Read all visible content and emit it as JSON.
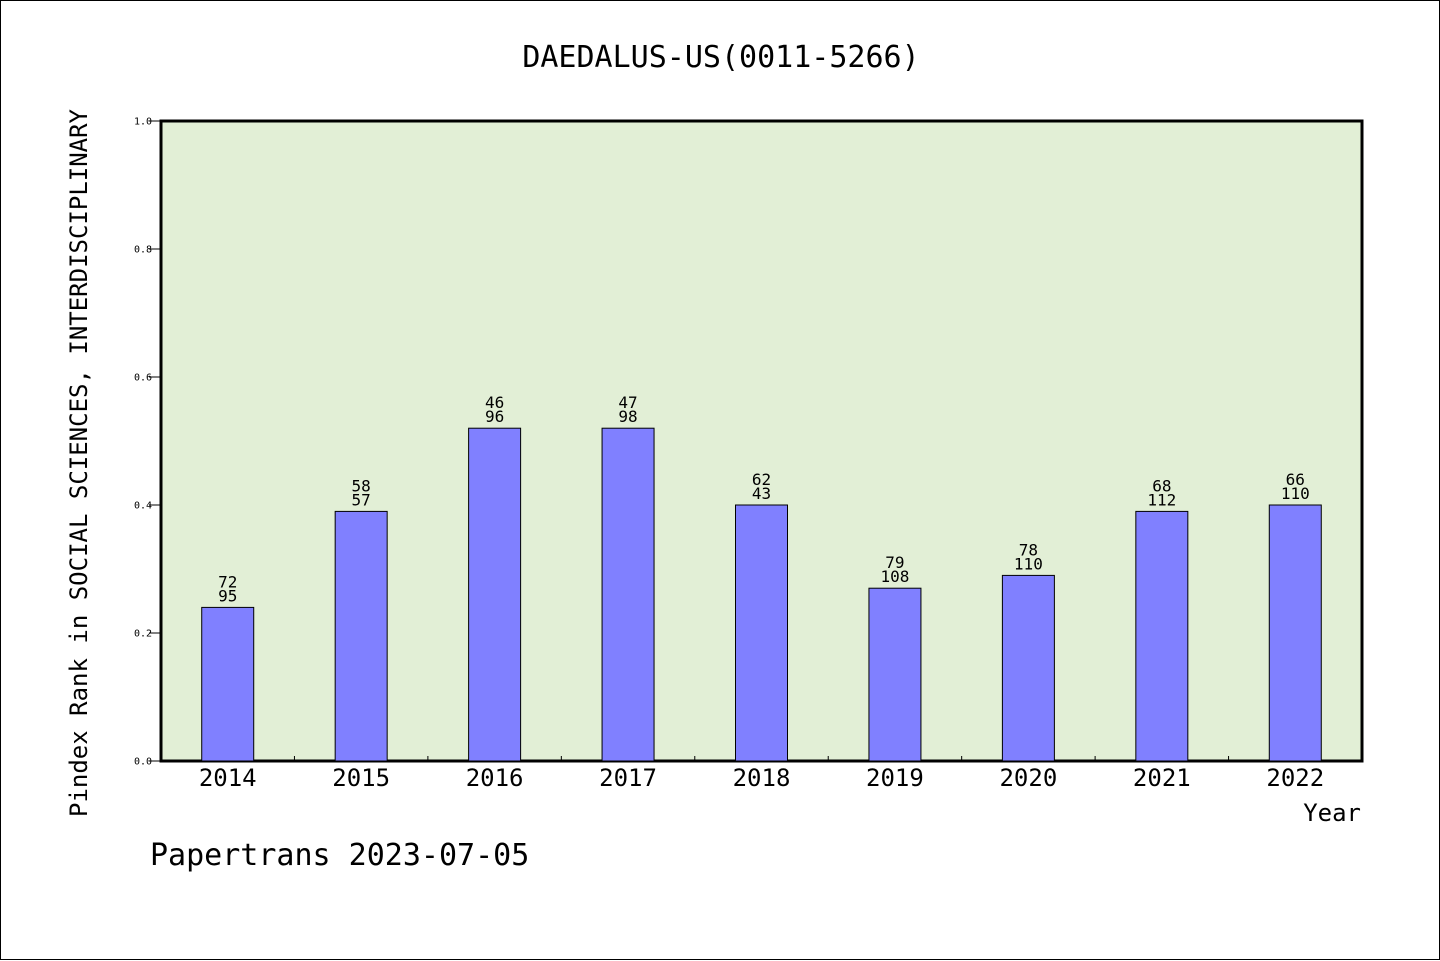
{
  "chart_data": {
    "type": "bar",
    "title": "DAEDALUS-US(0011-5266)",
    "xlabel": "Year",
    "ylabel": "Pindex Rank in SOCIAL SCIENCES, INTERDISCIPLINARY",
    "ylim": [
      0,
      1.0
    ],
    "yticks": [
      "0.0",
      "0.2",
      "0.4",
      "0.6",
      "0.8",
      "1.0"
    ],
    "categories": [
      "2014",
      "2015",
      "2016",
      "2017",
      "2018",
      "2019",
      "2020",
      "2021",
      "2022"
    ],
    "values": [
      0.24,
      0.39,
      0.52,
      0.52,
      0.4,
      0.27,
      0.29,
      0.39,
      0.4
    ],
    "labels_top": [
      "72",
      "58",
      "46",
      "47",
      "62",
      "79",
      "78",
      "68",
      "66"
    ],
    "labels_bottom": [
      "95",
      "57",
      "96",
      "98",
      "43",
      "108",
      "110",
      "112",
      "110"
    ],
    "grid": false,
    "colors": {
      "bar": "#8080ff",
      "plot_background": "#e2efd6",
      "axis": "#000000"
    }
  },
  "footer": {
    "credit": "Papertrans 2023-07-05"
  }
}
